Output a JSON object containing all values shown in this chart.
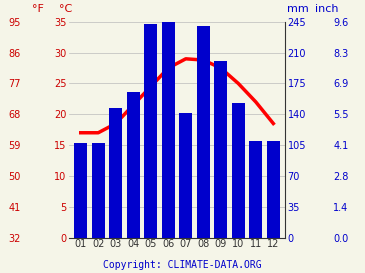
{
  "months": [
    "01",
    "02",
    "03",
    "04",
    "05",
    "06",
    "07",
    "08",
    "09",
    "10",
    "11",
    "12"
  ],
  "precipitation_mm": [
    107,
    107,
    147,
    165,
    242,
    247,
    141,
    240,
    200,
    153,
    110,
    110
  ],
  "temperature_c": [
    17.0,
    17.0,
    18.5,
    21.5,
    24.5,
    27.5,
    29.0,
    28.8,
    27.5,
    25.0,
    22.0,
    18.5
  ],
  "bar_color": "#0000cc",
  "line_color": "#ff0000",
  "c_ticks": [
    0,
    5,
    10,
    15,
    20,
    25,
    30,
    35
  ],
  "f_ticks": [
    32,
    41,
    50,
    59,
    68,
    77,
    86,
    95
  ],
  "mm_ticks": [
    0,
    35,
    70,
    105,
    140,
    175,
    210,
    245
  ],
  "inch_ticks": [
    "0.0",
    "1.4",
    "2.8",
    "4.1",
    "5.5",
    "6.9",
    "8.3",
    "9.6"
  ],
  "background_color": "#f5f5e8",
  "grid_color": "#bbbbbb",
  "red_color": "#cc0000",
  "blue_color": "#0000cc",
  "dark_color": "#333333",
  "copyright_text": "Copyright: CLIMATE-DATA.ORG",
  "c_min": 0,
  "c_max": 35,
  "mm_min": 0,
  "mm_max": 245
}
